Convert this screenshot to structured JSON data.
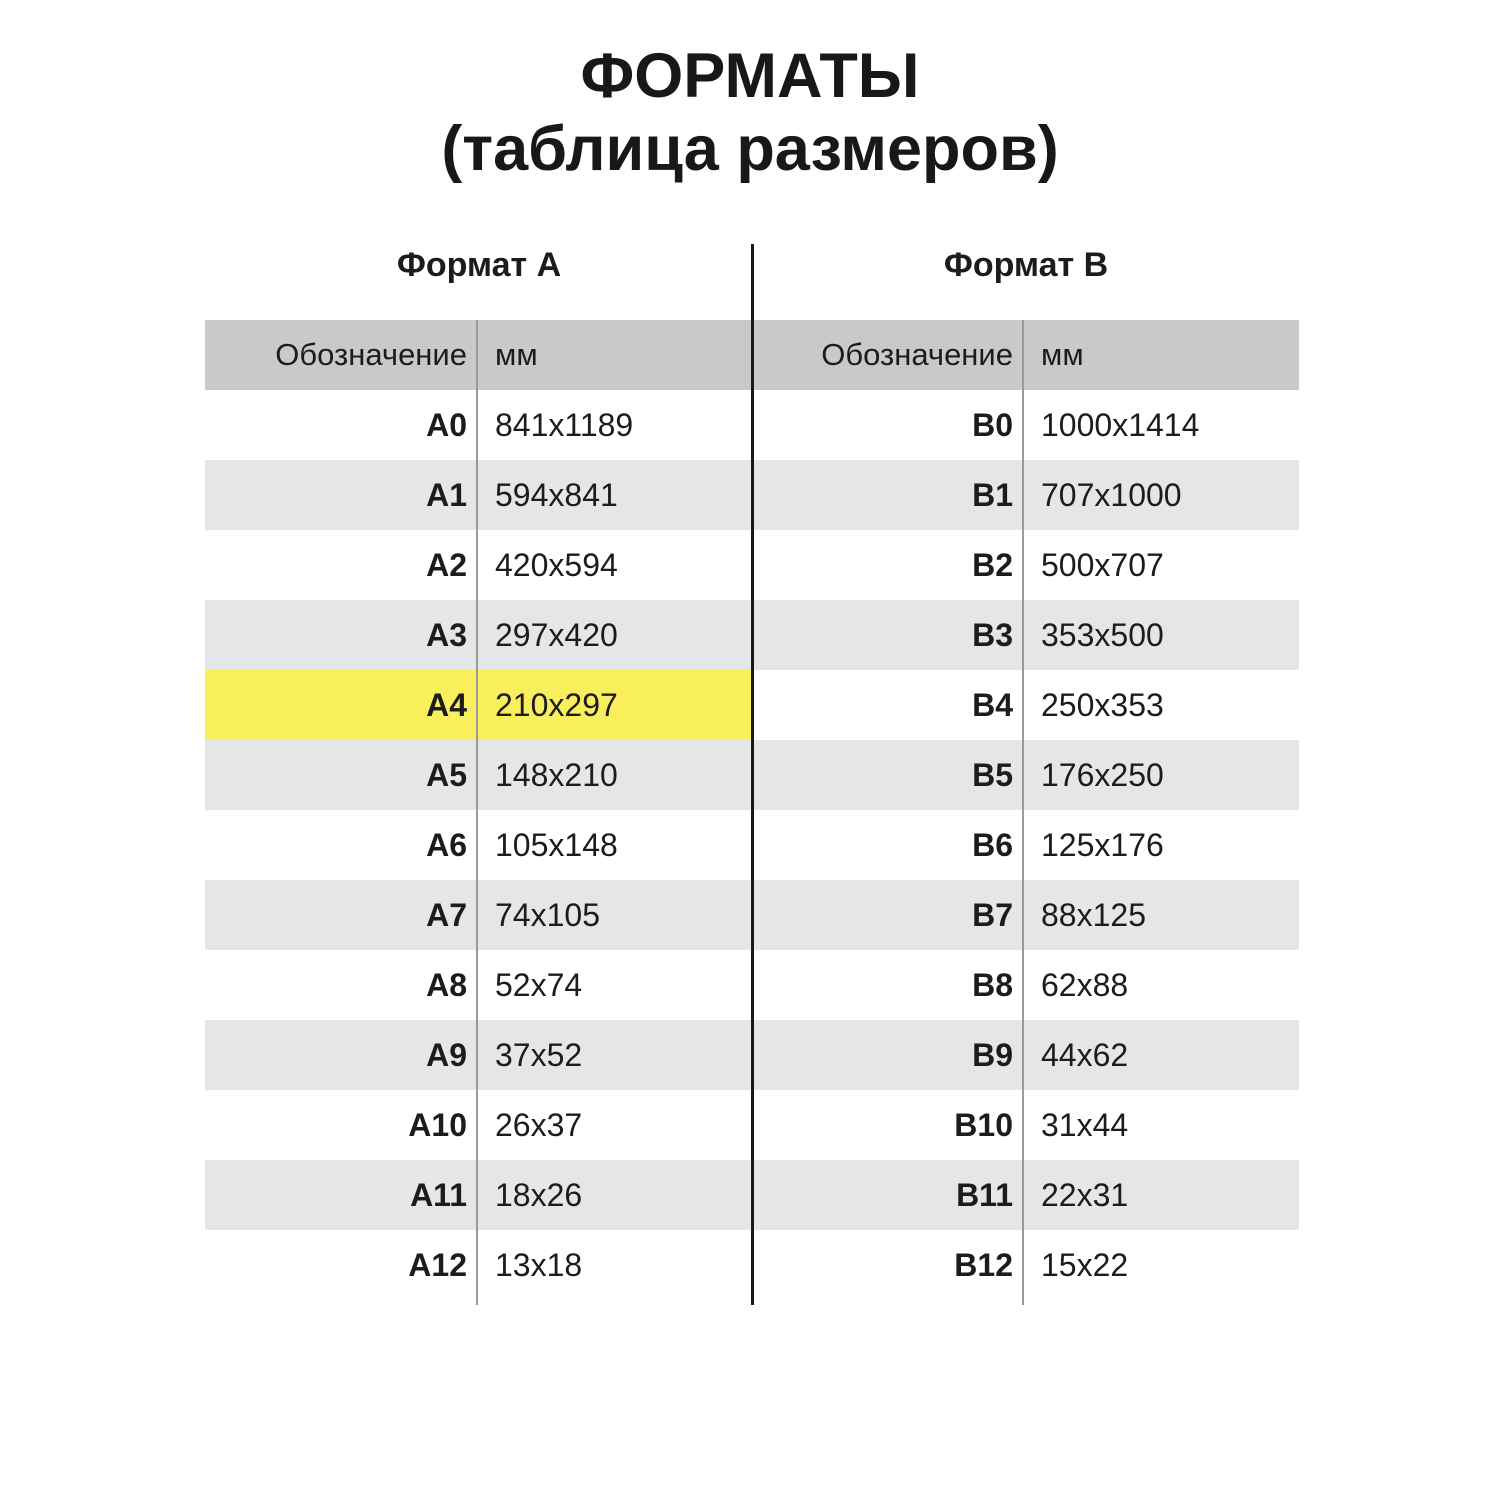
{
  "title": {
    "line1": "ФОРМАТЫ",
    "line2": "(таблица размеров)"
  },
  "columns": {
    "designation": "Обозначение",
    "mm": "мм"
  },
  "highlight": {
    "row": "A4",
    "color": "#f9ef5c"
  },
  "colors": {
    "header_bg": "#c9c9c9",
    "stripe_bg": "#e4e6e7",
    "highlight_yellow": "#f9ef5c",
    "center_line": "#191919",
    "inner_divider": "#9a9a9a",
    "text": "#1c1c1c"
  },
  "tables": [
    {
      "title": "Формат А",
      "rows": [
        {
          "code": "A0",
          "size": "841x1189"
        },
        {
          "code": "A1",
          "size": "594x841"
        },
        {
          "code": "A2",
          "size": "420x594"
        },
        {
          "code": "A3",
          "size": "297x420"
        },
        {
          "code": "A4",
          "size": "210x297"
        },
        {
          "code": "A5",
          "size": "148x210"
        },
        {
          "code": "A6",
          "size": "105x148"
        },
        {
          "code": "A7",
          "size": "74x105"
        },
        {
          "code": "A8",
          "size": "52x74"
        },
        {
          "code": "A9",
          "size": "37x52"
        },
        {
          "code": "A10",
          "size": "26x37"
        },
        {
          "code": "A11",
          "size": "18x26"
        },
        {
          "code": "A12",
          "size": "13x18"
        }
      ]
    },
    {
      "title": "Формат B",
      "rows": [
        {
          "code": "B0",
          "size": "1000x1414"
        },
        {
          "code": "B1",
          "size": "707x1000"
        },
        {
          "code": "B2",
          "size": "500x707"
        },
        {
          "code": "B3",
          "size": "353x500"
        },
        {
          "code": "B4",
          "size": "250x353"
        },
        {
          "code": "B5",
          "size": "176x250"
        },
        {
          "code": "B6",
          "size": "125x176"
        },
        {
          "code": "B7",
          "size": "88x125"
        },
        {
          "code": "B8",
          "size": "62x88"
        },
        {
          "code": "B9",
          "size": "44x62"
        },
        {
          "code": "B10",
          "size": "31x44"
        },
        {
          "code": "B11",
          "size": "22x31"
        },
        {
          "code": "B12",
          "size": "15x22"
        }
      ]
    }
  ],
  "chart_data": {
    "type": "table",
    "title": "ФОРМАТЫ (таблица размеров)",
    "tables": [
      {
        "name": "Формат А",
        "columns": [
          "Обозначение",
          "мм"
        ],
        "rows": [
          [
            "A0",
            "841x1189"
          ],
          [
            "A1",
            "594x841"
          ],
          [
            "A2",
            "420x594"
          ],
          [
            "A3",
            "297x420"
          ],
          [
            "A4",
            "210x297"
          ],
          [
            "A5",
            "148x210"
          ],
          [
            "A6",
            "105x148"
          ],
          [
            "A7",
            "74x105"
          ],
          [
            "A8",
            "52x74"
          ],
          [
            "A9",
            "37x52"
          ],
          [
            "A10",
            "26x37"
          ],
          [
            "A11",
            "18x26"
          ],
          [
            "A12",
            "13x18"
          ]
        ],
        "highlighted_row": "A4"
      },
      {
        "name": "Формат B",
        "columns": [
          "Обозначение",
          "мм"
        ],
        "rows": [
          [
            "B0",
            "1000x1414"
          ],
          [
            "B1",
            "707x1000"
          ],
          [
            "B2",
            "500x707"
          ],
          [
            "B3",
            "353x500"
          ],
          [
            "B4",
            "250x353"
          ],
          [
            "B5",
            "176x250"
          ],
          [
            "B6",
            "125x176"
          ],
          [
            "B7",
            "88x125"
          ],
          [
            "B8",
            "62x88"
          ],
          [
            "B9",
            "44x62"
          ],
          [
            "B10",
            "31x44"
          ],
          [
            "B11",
            "22x31"
          ],
          [
            "B12",
            "15x22"
          ]
        ]
      }
    ]
  }
}
